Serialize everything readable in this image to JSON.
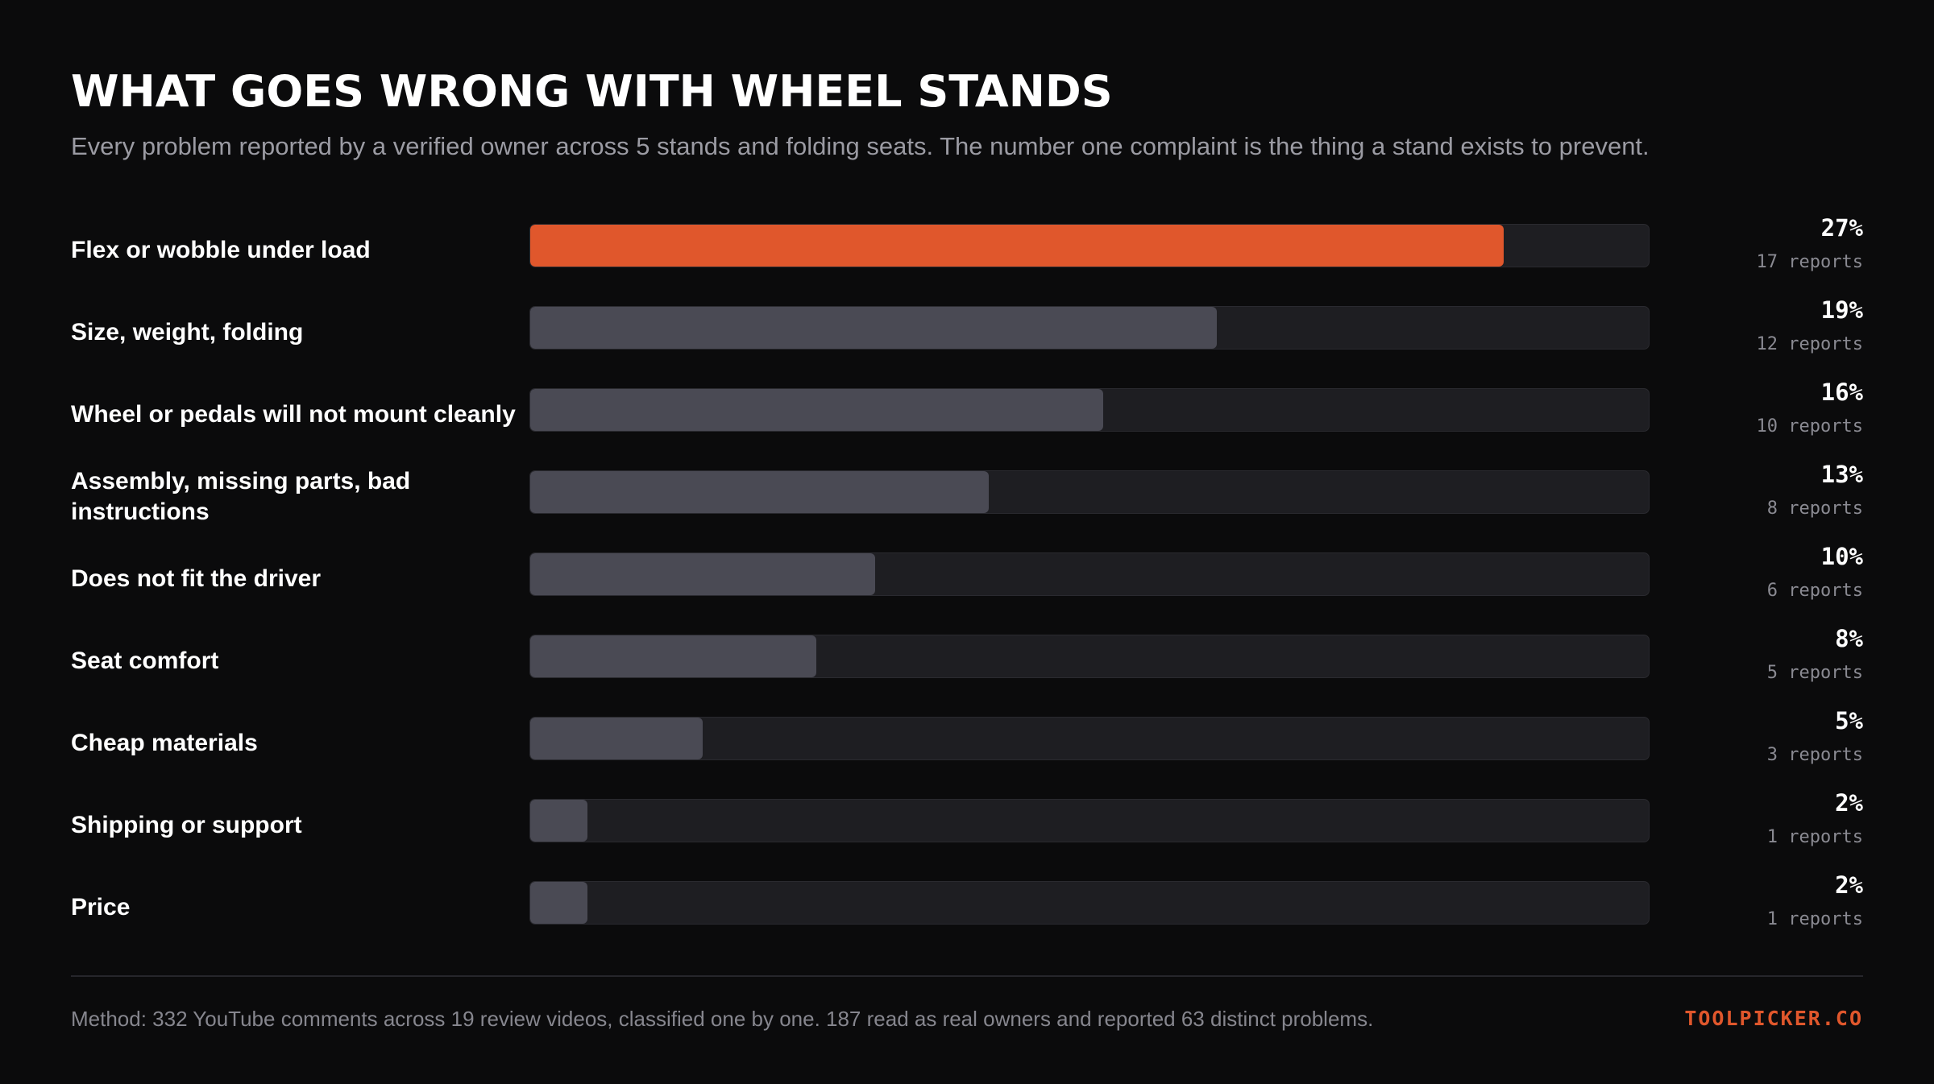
{
  "title": "WHAT GOES WRONG WITH WHEEL STANDS",
  "subtitle": "Every problem reported by a verified owner across 5 stands and folding seats. The number one complaint is the thing a stand exists to prevent.",
  "colors": {
    "background": "#0b0b0c",
    "highlight_bar": "#e0572c",
    "default_bar": "#4a4a54",
    "track": "#1e1e22",
    "brand": "#e0572c"
  },
  "chart_data": {
    "type": "bar",
    "orientation": "horizontal",
    "title": "WHAT GOES WRONG WITH WHEEL STANDS",
    "xlim": [
      0,
      31
    ],
    "highlight_index": 0,
    "categories": [
      "Flex or wobble under load",
      "Size, weight, folding",
      "Wheel or pedals will not mount cleanly",
      "Assembly, missing parts, bad instructions",
      "Does not fit the driver",
      "Seat comfort",
      "Cheap materials",
      "Shipping or support",
      "Price"
    ],
    "values": [
      27,
      19,
      16,
      13,
      10,
      8,
      5,
      2,
      2
    ],
    "value_labels": [
      "27%",
      "19%",
      "16%",
      "13%",
      "10%",
      "8%",
      "5%",
      "2%",
      "2%"
    ],
    "report_labels": [
      "17 reports",
      "12 reports",
      "10 reports",
      "8 reports",
      "6 reports",
      "5 reports",
      "3 reports",
      "1 reports",
      "1 reports"
    ],
    "bar_fill_fraction": [
      0.87,
      0.614,
      0.512,
      0.41,
      0.308,
      0.256,
      0.154,
      0.051,
      0.051
    ]
  },
  "footer": {
    "method": "Method: 332 YouTube comments across 19 review videos, classified one by one. 187 read as real owners and reported 63 distinct problems.",
    "brand": "TOOLPICKER.CO"
  }
}
